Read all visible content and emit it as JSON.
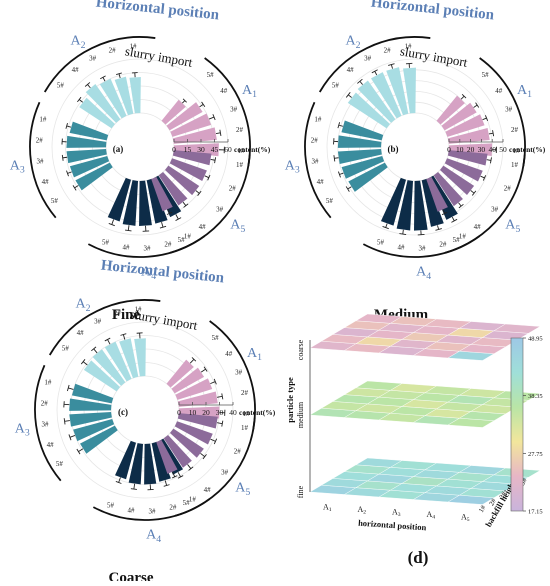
{
  "colors": {
    "a1": "#d6a2c4",
    "a2": "#a8dde3",
    "a3": "#3a8d9e",
    "a4": "#0d2c48",
    "a5": "#8c6b9a",
    "heading": "#5b7fb5",
    "arc": "#111111",
    "cbar": [
      "#c9b4dc",
      "#e7b6c6",
      "#f2e69c",
      "#b9e5a6",
      "#9fdfd9",
      "#9ec8e6"
    ]
  },
  "common": {
    "heading": "Horizontal position",
    "import_label": "slurry import",
    "content_label": "content(%)",
    "group_labels": [
      "A1",
      "A2",
      "A3",
      "A4",
      "A5"
    ],
    "bar_labels": [
      "1#",
      "2#",
      "3#",
      "4#",
      "5#"
    ]
  },
  "chart_data": [
    {
      "type": "bar",
      "panel": "(a)",
      "caption": "Fine",
      "radial_ticks": [
        "0",
        "15",
        "30",
        "45",
        "60"
      ],
      "rmax": 60,
      "series": [
        {
          "group": "A1",
          "values": [
            50,
            48,
            45,
            42,
            30
          ],
          "errors": [
            6,
            5,
            6,
            5,
            4
          ]
        },
        {
          "group": "A2",
          "values": [
            40,
            42,
            45,
            48,
            43
          ],
          "errors": [
            5,
            5,
            5,
            5,
            5
          ]
        },
        {
          "group": "A3",
          "values": [
            42,
            44,
            44,
            43,
            43
          ],
          "errors": [
            5,
            5,
            5,
            5,
            5
          ]
        },
        {
          "group": "A4",
          "values": [
            47,
            49,
            50,
            50,
            48
          ],
          "errors": [
            6,
            6,
            6,
            6,
            6
          ]
        },
        {
          "group": "A5",
          "values": [
            42,
            41,
            41,
            40,
            38
          ],
          "errors": [
            5,
            5,
            5,
            5,
            5
          ]
        }
      ]
    },
    {
      "type": "bar",
      "panel": "(b)",
      "caption": "Medium",
      "radial_ticks": [
        "0",
        "10",
        "20",
        "30",
        "40",
        "50"
      ],
      "rmax": 50,
      "series": [
        {
          "group": "A1",
          "values": [
            40,
            38,
            36,
            34,
            30
          ],
          "errors": [
            4,
            4,
            4,
            4,
            4
          ]
        },
        {
          "group": "A2",
          "values": [
            42,
            44,
            44,
            44,
            43
          ],
          "errors": [
            4,
            4,
            4,
            4,
            4
          ]
        },
        {
          "group": "A3",
          "values": [
            38,
            40,
            40,
            39,
            38
          ],
          "errors": [
            4,
            4,
            4,
            4,
            4
          ]
        },
        {
          "group": "A4",
          "values": [
            42,
            44,
            46,
            46,
            44
          ],
          "errors": [
            4,
            4,
            4,
            4,
            4
          ]
        },
        {
          "group": "A5",
          "values": [
            36,
            35,
            34,
            34,
            32
          ],
          "errors": [
            4,
            4,
            4,
            4,
            4
          ]
        }
      ]
    },
    {
      "type": "bar",
      "panel": "(c)",
      "caption": "Coarse",
      "radial_ticks": [
        "0",
        "10",
        "20",
        "30",
        "40"
      ],
      "rmax": 40,
      "series": [
        {
          "group": "A1",
          "values": [
            30,
            29,
            27,
            25,
            23
          ],
          "errors": [
            4,
            4,
            4,
            4,
            4
          ]
        },
        {
          "group": "A2",
          "values": [
            28,
            29,
            30,
            30,
            29
          ],
          "errors": [
            4,
            4,
            4,
            4,
            4
          ]
        },
        {
          "group": "A3",
          "values": [
            30,
            31,
            31,
            30,
            29
          ],
          "errors": [
            4,
            4,
            4,
            4,
            4
          ]
        },
        {
          "group": "A4",
          "values": [
            27,
            29,
            30,
            30,
            28
          ],
          "errors": [
            4,
            4,
            4,
            4,
            4
          ]
        },
        {
          "group": "A5",
          "values": [
            29,
            28,
            27,
            26,
            25
          ],
          "errors": [
            4,
            4,
            4,
            4,
            4
          ]
        }
      ]
    },
    {
      "type": "heatmap",
      "panel": "(d)",
      "xlabel": "horizontal position",
      "ylabel": "particle type",
      "zlabel": "backfill height",
      "x_categories": [
        "A1",
        "A2",
        "A3",
        "A4",
        "A5"
      ],
      "height_categories": [
        "1#",
        "2#",
        "3#",
        "4#",
        "5#"
      ],
      "layers": [
        "fine",
        "medium",
        "coarse"
      ],
      "colorbar_ticks": [
        "48.95",
        "38.35",
        "27.75",
        "17.15"
      ],
      "colorbar_range": [
        17.15,
        48.95
      ],
      "values": {
        "fine": [
          [
            46,
            44,
            42,
            45,
            47
          ],
          [
            44,
            41,
            43,
            44,
            42
          ],
          [
            43,
            45,
            40,
            42,
            44
          ],
          [
            41,
            43,
            44,
            41,
            43
          ],
          [
            44,
            42,
            43,
            45,
            41
          ]
        ],
        "medium": [
          [
            38,
            37,
            35,
            38,
            36
          ],
          [
            35,
            34,
            36,
            33,
            37
          ],
          [
            37,
            36,
            33,
            35,
            34
          ],
          [
            34,
            35,
            36,
            38,
            35
          ],
          [
            36,
            33,
            35,
            34,
            36
          ]
        ],
        "coarse": [
          [
            22,
            24,
            21,
            23,
            45
          ],
          [
            24,
            28,
            22,
            25,
            23
          ],
          [
            21,
            23,
            26,
            22,
            24
          ],
          [
            25,
            22,
            23,
            28,
            21
          ],
          [
            23,
            25,
            24,
            21,
            22
          ]
        ]
      }
    }
  ]
}
